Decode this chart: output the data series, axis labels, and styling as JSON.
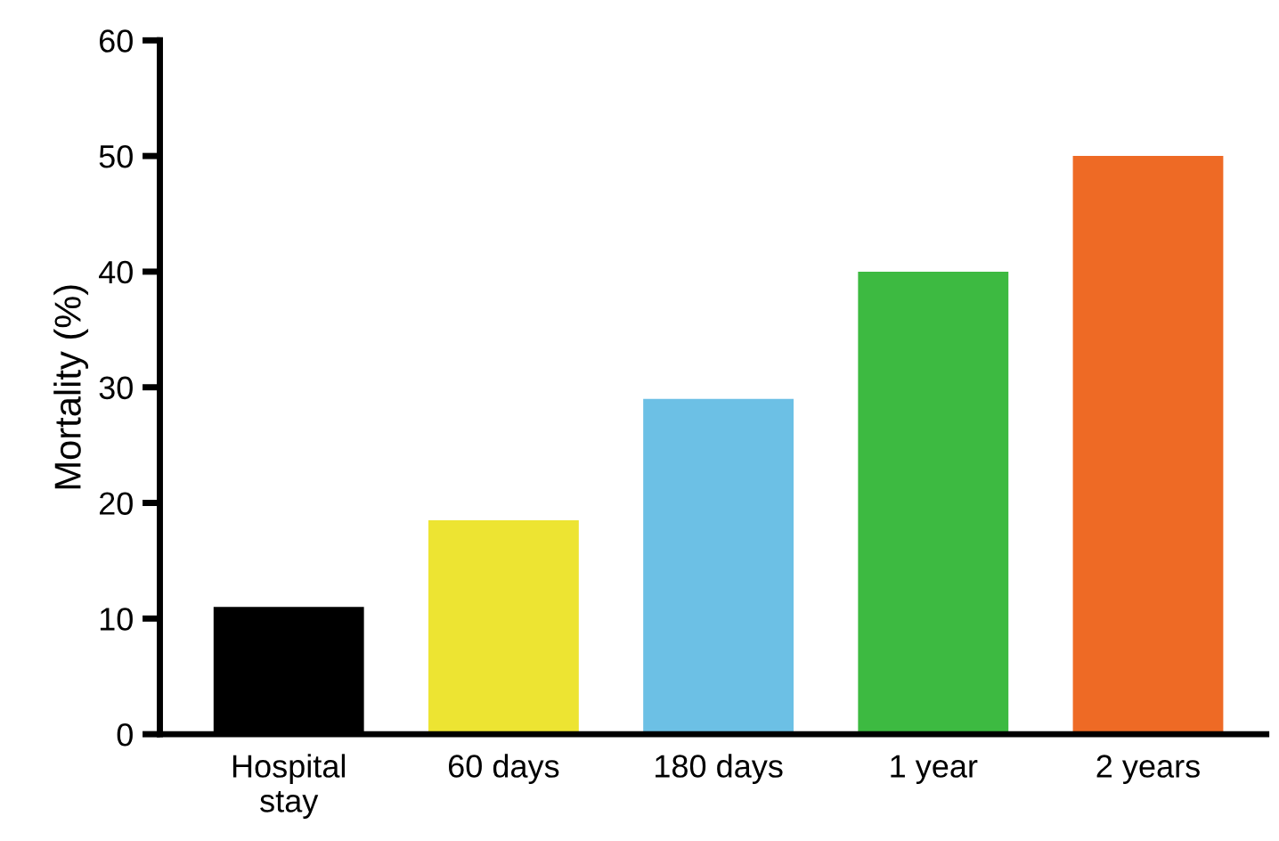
{
  "chart_data": {
    "type": "bar",
    "categories": [
      "Hospital\nstay",
      "60 days",
      "180 days",
      "1 year",
      "2 years"
    ],
    "values": [
      11,
      18.5,
      29,
      40,
      50
    ],
    "colors": [
      "#000000",
      "#ede432",
      "#6cc0e5",
      "#3dba41",
      "#ee6a25"
    ],
    "ylabel": "Mortality (%)",
    "ylim": [
      0,
      60
    ],
    "yticks": [
      0,
      10,
      20,
      30,
      40,
      50,
      60
    ],
    "grid": false,
    "legend": false
  }
}
